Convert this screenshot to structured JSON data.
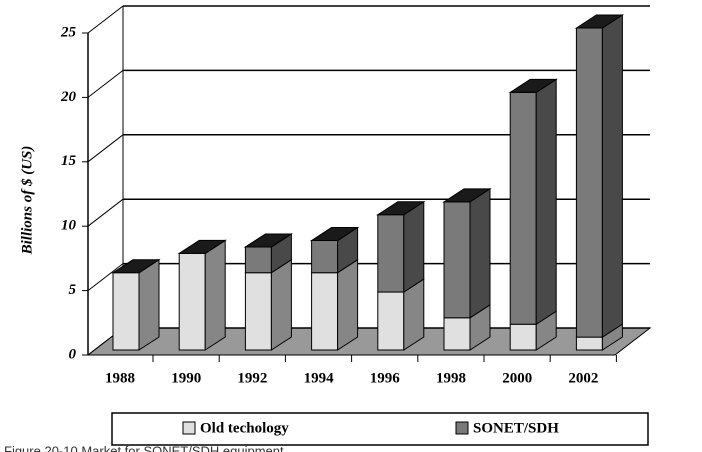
{
  "chart_data": {
    "type": "bar",
    "stacked": true,
    "3d": true,
    "y_label": "Billions of $ (US)",
    "categories": [
      "1988",
      "1990",
      "1992",
      "1994",
      "1996",
      "1998",
      "2000",
      "2002"
    ],
    "series": [
      {
        "name": "Old techology",
        "color": "#e0e0e0",
        "values": [
          6,
          7.5,
          6,
          6,
          4.5,
          2.5,
          2,
          1
        ]
      },
      {
        "name": "SONET/SDH",
        "color": "#7a7a7a",
        "values": [
          0,
          0,
          2,
          2.5,
          6,
          9,
          18,
          24
        ]
      }
    ],
    "ylim": [
      0,
      25
    ],
    "yticks": [
      0,
      5,
      10,
      15,
      20,
      25
    ],
    "grid": true,
    "caption": "Figure 20-10  Market for SONET/SDH equipment"
  }
}
